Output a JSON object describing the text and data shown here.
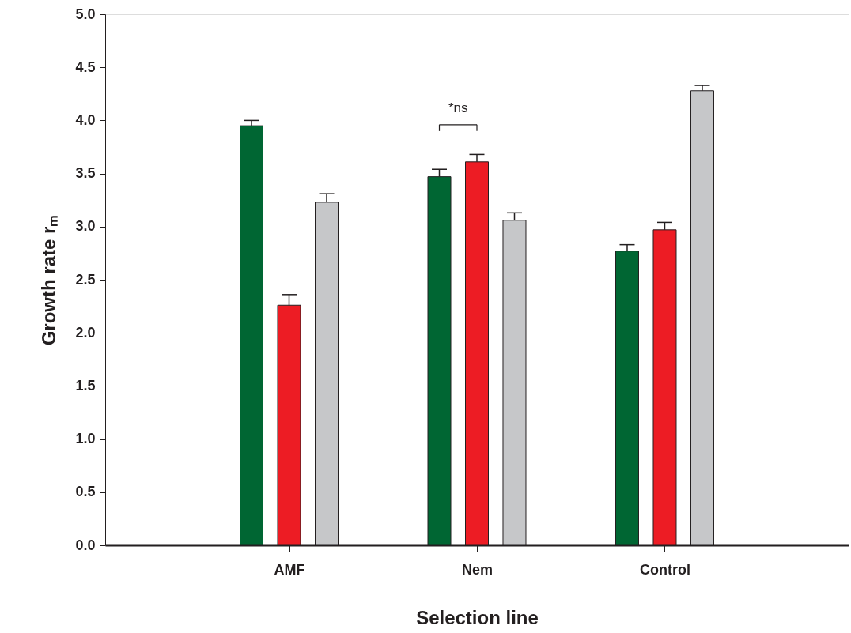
{
  "chart_data": {
    "type": "bar",
    "xlabel": "Selection line",
    "ylabel": "Growth rate rₘ",
    "categories": [
      "AMF",
      "Nem",
      "Control"
    ],
    "series": [
      {
        "color": "#006633",
        "values": [
          3.95,
          3.47,
          2.77
        ],
        "errors": [
          [
            3.95,
            4.0
          ],
          [
            3.47,
            3.54
          ],
          [
            2.77,
            2.83
          ]
        ]
      },
      {
        "color": "#ed1c24",
        "values": [
          2.26,
          3.61,
          2.97
        ],
        "errors": [
          [
            2.26,
            2.36
          ],
          [
            3.61,
            3.68
          ],
          [
            2.97,
            3.04
          ]
        ]
      },
      {
        "color": "#c6c7c9",
        "values": [
          3.23,
          3.06,
          4.28
        ],
        "errors": [
          [
            3.23,
            3.31
          ],
          [
            3.06,
            3.13
          ],
          [
            4.28,
            4.33
          ]
        ]
      }
    ],
    "ylim": [
      0,
      5
    ],
    "yticks": [
      {
        "value": 0,
        "label": "0.0"
      },
      0.5,
      {
        "value": 1,
        "label": "1.0"
      },
      1.5,
      {
        "value": 2,
        "label": "2.0"
      },
      2.5,
      {
        "value": 3,
        "label": "3.0"
      },
      3.5,
      {
        "value": 4,
        "label": "4.0"
      },
      4.5,
      {
        "value": 5,
        "label": "5.0"
      }
    ],
    "annotations": [
      "*ns"
    ],
    "grid": false
  }
}
